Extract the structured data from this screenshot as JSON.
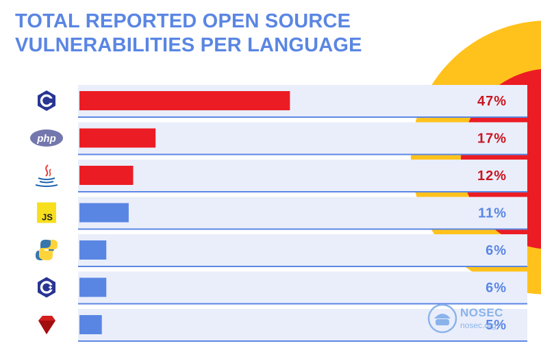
{
  "title_lines": [
    "TOTAL REPORTED OPEN SOURCE",
    "VULNERABILITIES PER LANGUAGE"
  ],
  "colors": {
    "title": "#5a86e3",
    "highlight_bar": "#ec1c24",
    "normal_bar": "#5a86e3",
    "highlight_label": "#c8161f",
    "normal_label": "#5a86e3",
    "row_bg": "#eaeefb",
    "row_line": "#5a86e3",
    "deco_yellow": "#ffc21c",
    "deco_red": "#ec1c24"
  },
  "chart_data": {
    "type": "bar",
    "orientation": "horizontal",
    "categories": [
      "C",
      "PHP",
      "Java",
      "JavaScript",
      "Python",
      "C++",
      "Ruby"
    ],
    "category_icons": [
      "c-logo-icon",
      "php-logo-icon",
      "java-logo-icon",
      "js-logo-icon",
      "python-logo-icon",
      "cpp-logo-icon",
      "ruby-logo-icon"
    ],
    "values": [
      47,
      17,
      12,
      11,
      6,
      6,
      5
    ],
    "value_labels": [
      "47%",
      "17%",
      "12%",
      "11%",
      "6%",
      "6%",
      "5%"
    ],
    "highlighted": [
      true,
      true,
      true,
      false,
      false,
      false,
      false
    ],
    "title": "TOTAL REPORTED OPEN SOURCE VULNERABILITIES PER LANGUAGE",
    "xlim": [
      0,
      100
    ]
  },
  "watermark": {
    "line1": "NOSEC",
    "line2": "nosec.org",
    "icon": "shield-helmet-icon"
  }
}
